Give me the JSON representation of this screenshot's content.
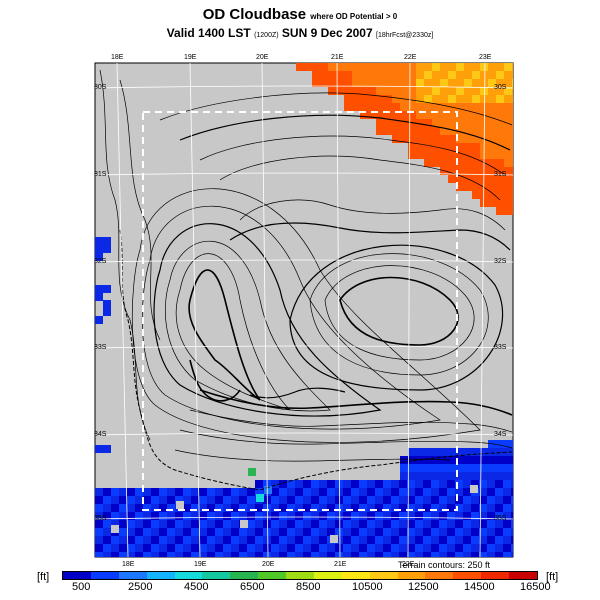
{
  "title": {
    "main": "OD Cloudbase",
    "sub": "where OD Potential > 0",
    "valid": "Valid 1400 LST",
    "valid_small1": "(1200Z)",
    "date": "SUN 9 Dec 2007",
    "valid_small2": "[18hrFcst@2330z]"
  },
  "axes": {
    "top_lon": [
      "18E",
      "19E",
      "20E",
      "21E",
      "22E",
      "23E"
    ],
    "bottom_lon": [
      "18E",
      "19E",
      "20E",
      "21E",
      "22E"
    ],
    "left_lat": [
      "30S",
      "31S",
      "32S",
      "33S",
      "34S",
      "35S"
    ],
    "right_lat": [
      "30S",
      "31S",
      "32S",
      "33S",
      "34S",
      "35S"
    ]
  },
  "colorbar": {
    "unit_left": "[ft]",
    "unit_right": "[ft]",
    "labels": [
      "500",
      "2500",
      "4500",
      "6500",
      "8500",
      "10500",
      "12500",
      "14500",
      "16500"
    ],
    "colors": [
      "#0000c8",
      "#0a3cff",
      "#1e78ff",
      "#14b4ff",
      "#14dcdc",
      "#14c8a0",
      "#28b450",
      "#50c828",
      "#a0dc14",
      "#dcf014",
      "#ffe614",
      "#ffc814",
      "#ffa00a",
      "#ff780a",
      "#ff5000",
      "#f02800",
      "#c80000"
    ]
  },
  "terrain_note": "Terrain contours: 250 ft",
  "map": {
    "background": "#c8c8c8",
    "high_cloudbase_color": "#ff5a14",
    "low_cloudbase_color": "#0a28e6"
  }
}
